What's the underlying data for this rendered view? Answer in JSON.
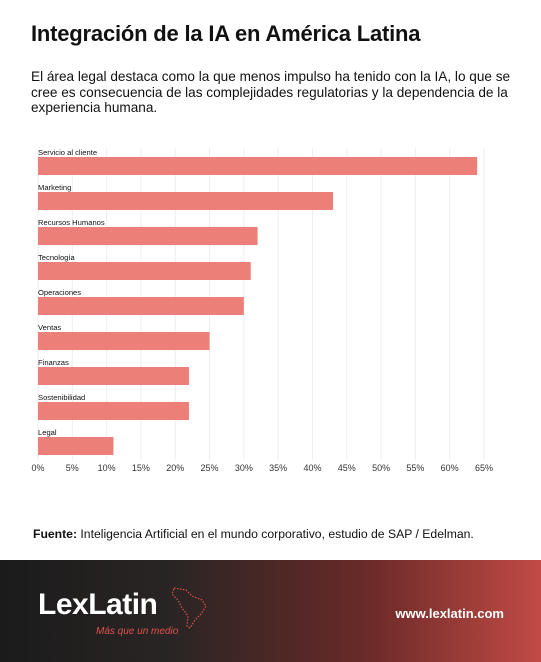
{
  "header": {
    "title": "Integración de la IA en América Latina",
    "subtitle": "El área legal destaca como la que menos impulso ha tenido con la IA, lo que se cree es consecuencia de las complejidades regulatorias y la dependencia de la experiencia humana."
  },
  "chart_data": {
    "type": "bar",
    "orientation": "horizontal",
    "categories": [
      "Servicio al cliente",
      "Marketing",
      "Recursos Humanos",
      "Tecnología",
      "Operaciones",
      "Ventas",
      "Finanzas",
      "Sostenibilidad",
      "Legal"
    ],
    "values": [
      64,
      43,
      32,
      31,
      30,
      25,
      22,
      22,
      11
    ],
    "xlim": [
      0,
      65
    ],
    "ticks": [
      "0%",
      "5%",
      "10%",
      "15%",
      "20%",
      "25%",
      "30%",
      "35%",
      "40%",
      "45%",
      "50%",
      "55%",
      "60%",
      "65%"
    ],
    "tick_values": [
      0,
      5,
      10,
      15,
      20,
      25,
      30,
      35,
      40,
      45,
      50,
      55,
      60,
      65
    ],
    "grid": true,
    "bar_color": "#ec7f78"
  },
  "source": {
    "label": "Fuente:",
    "text": " Inteligencia Artificial en el mundo corporativo, estudio de SAP / Edelman."
  },
  "footer": {
    "logo": "LexLatin",
    "tagline": "Más que un medio",
    "url": "www.lexlatin.com",
    "accent_color": "#e0524c"
  }
}
